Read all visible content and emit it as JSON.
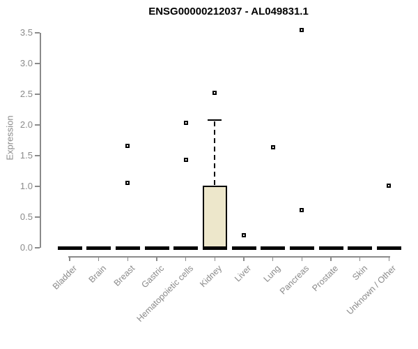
{
  "chart_data": {
    "type": "boxplot",
    "title": "ENSG00000212037 - AL049831.1",
    "ylabel": "Expression",
    "xlabel": "",
    "ylim": [
      0.0,
      3.5
    ],
    "ytick_labels": [
      "0.0",
      "0.5",
      "1.0",
      "1.5",
      "2.0",
      "2.5",
      "3.0",
      "3.5"
    ],
    "grid": false,
    "legend": false,
    "categories": [
      "Bladder",
      "Brain",
      "Breast",
      "Gastric",
      "Hematopoietic cells",
      "Kidney",
      "Liver",
      "Lung",
      "Pancreas",
      "Prostate",
      "Skin",
      "Unknown / Other"
    ],
    "series": [
      {
        "category": "Bladder",
        "median": 0,
        "q1": 0,
        "q3": 0,
        "whisker_low": 0,
        "whisker_high": 0,
        "outliers": []
      },
      {
        "category": "Brain",
        "median": 0,
        "q1": 0,
        "q3": 0,
        "whisker_low": 0,
        "whisker_high": 0,
        "outliers": []
      },
      {
        "category": "Breast",
        "median": 0,
        "q1": 0,
        "q3": 0,
        "whisker_low": 0,
        "whisker_high": 0,
        "outliers": [
          1.66,
          1.06
        ]
      },
      {
        "category": "Gastric",
        "median": 0,
        "q1": 0,
        "q3": 0,
        "whisker_low": 0,
        "whisker_high": 0,
        "outliers": []
      },
      {
        "category": "Hematopoietic cells",
        "median": 0,
        "q1": 0,
        "q3": 0,
        "whisker_low": 0,
        "whisker_high": 0,
        "outliers": [
          2.03,
          1.43
        ]
      },
      {
        "category": "Kidney",
        "median": 0,
        "q1": 0,
        "q3": 1.01,
        "whisker_low": 0,
        "whisker_high": 2.08,
        "outliers": [
          2.52
        ]
      },
      {
        "category": "Liver",
        "median": 0,
        "q1": 0,
        "q3": 0,
        "whisker_low": 0,
        "whisker_high": 0,
        "outliers": [
          0.21
        ]
      },
      {
        "category": "Lung",
        "median": 0,
        "q1": 0,
        "q3": 0,
        "whisker_low": 0,
        "whisker_high": 0,
        "outliers": [
          1.64
        ]
      },
      {
        "category": "Pancreas",
        "median": 0,
        "q1": 0,
        "q3": 0,
        "whisker_low": 0,
        "whisker_high": 0,
        "outliers": [
          3.55,
          0.61
        ]
      },
      {
        "category": "Prostate",
        "median": 0,
        "q1": 0,
        "q3": 0,
        "whisker_low": 0,
        "whisker_high": 0,
        "outliers": []
      },
      {
        "category": "Skin",
        "median": 0,
        "q1": 0,
        "q3": 0,
        "whisker_low": 0,
        "whisker_high": 0,
        "outliers": []
      },
      {
        "category": "Unknown / Other",
        "median": 0,
        "q1": 0,
        "q3": 0,
        "whisker_low": 0,
        "whisker_high": 0,
        "outliers": [
          1.01
        ]
      }
    ],
    "colors": {
      "box_fill": "#EDE7CB",
      "box_border": "#000000",
      "median": "#000000",
      "outlier_border": "#000000",
      "outlier_fill": "#ffffff",
      "axis": "#8A8A8A",
      "tick_label": "#8A8A8A",
      "title": "#000000",
      "background": "#ffffff"
    }
  }
}
